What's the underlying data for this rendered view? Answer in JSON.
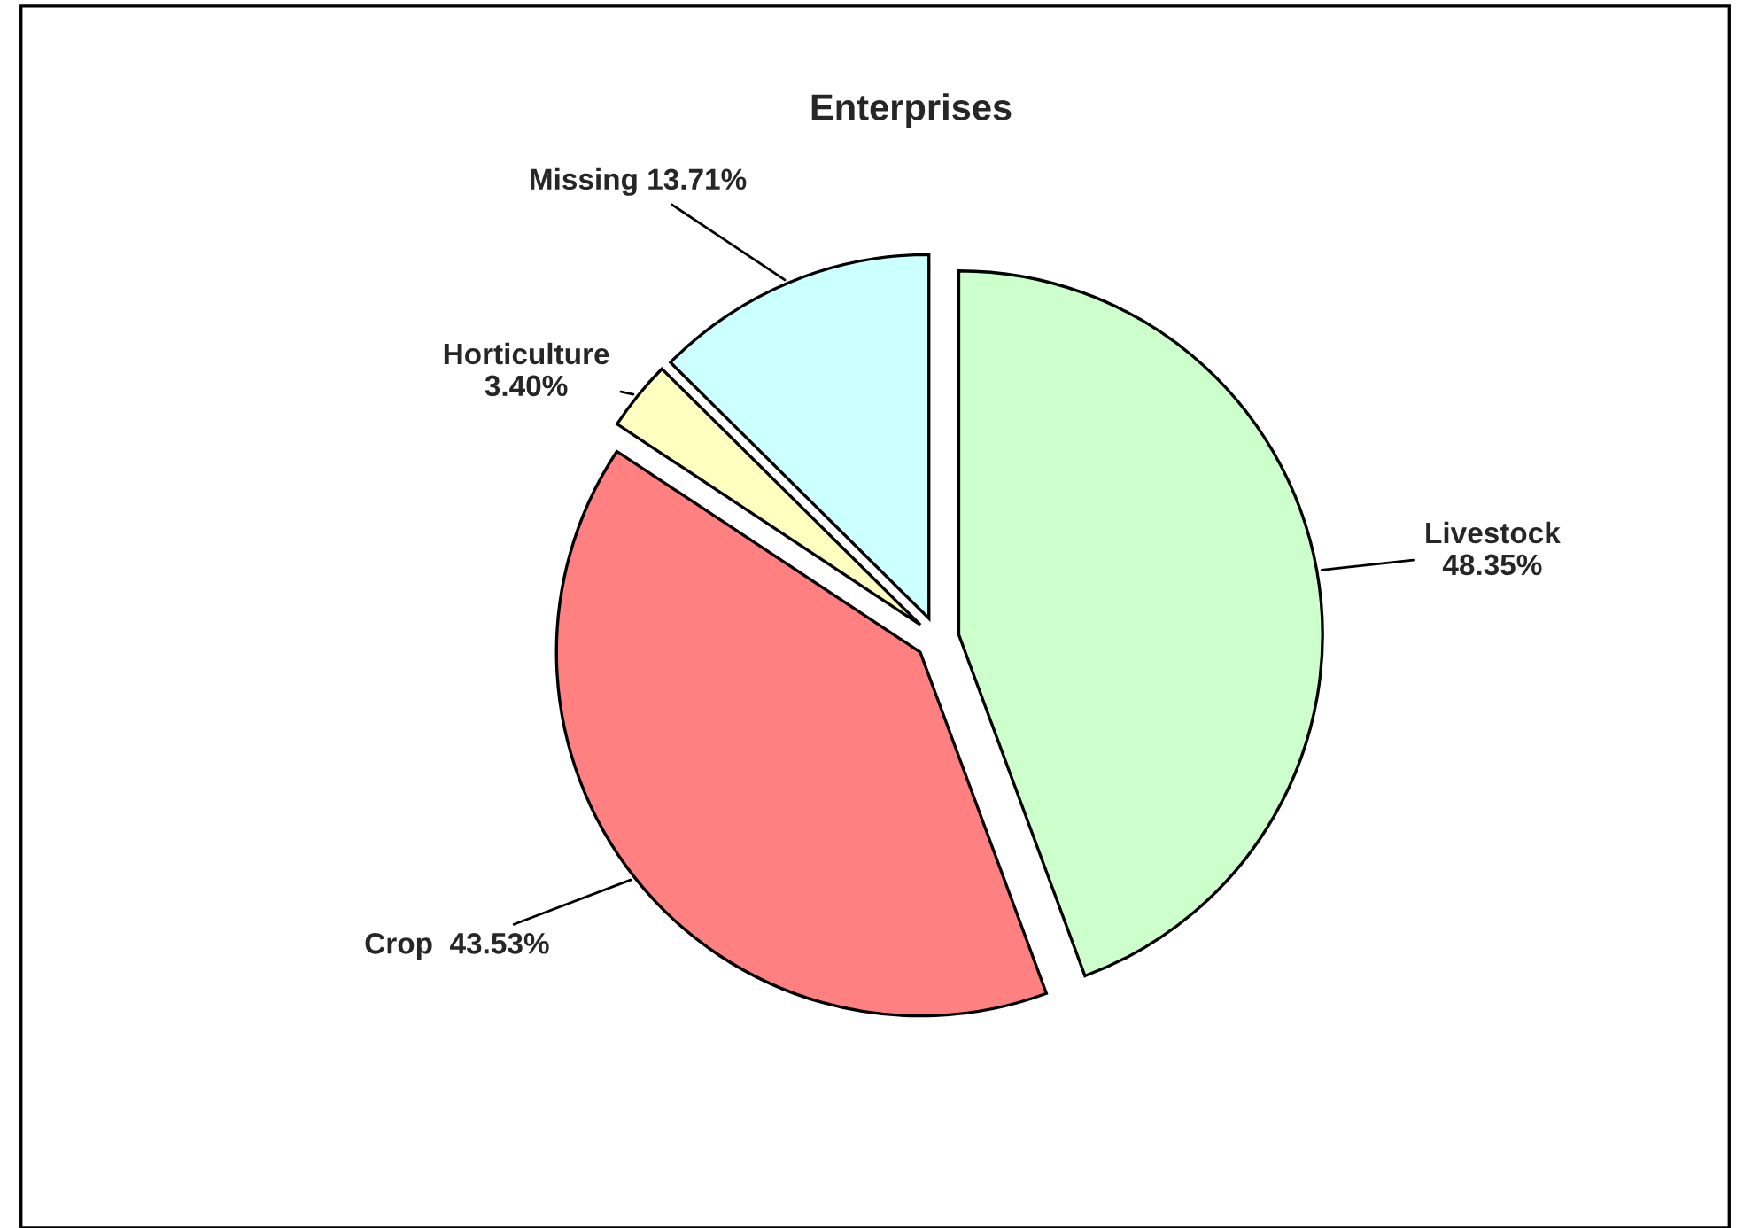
{
  "chart_data": {
    "type": "pie",
    "title": "Enterprises",
    "categories": [
      "Livestock",
      "Crop",
      "Horticulture",
      "Missing"
    ],
    "values": [
      48.35,
      43.53,
      3.4,
      13.71
    ],
    "value_labels": [
      "48.35%",
      "43.53%",
      "3.40%",
      "13.71%"
    ],
    "colors": [
      "#ccffcc",
      "#ff8080",
      "#ffffc0",
      "#ccffff"
    ],
    "legend": false
  }
}
